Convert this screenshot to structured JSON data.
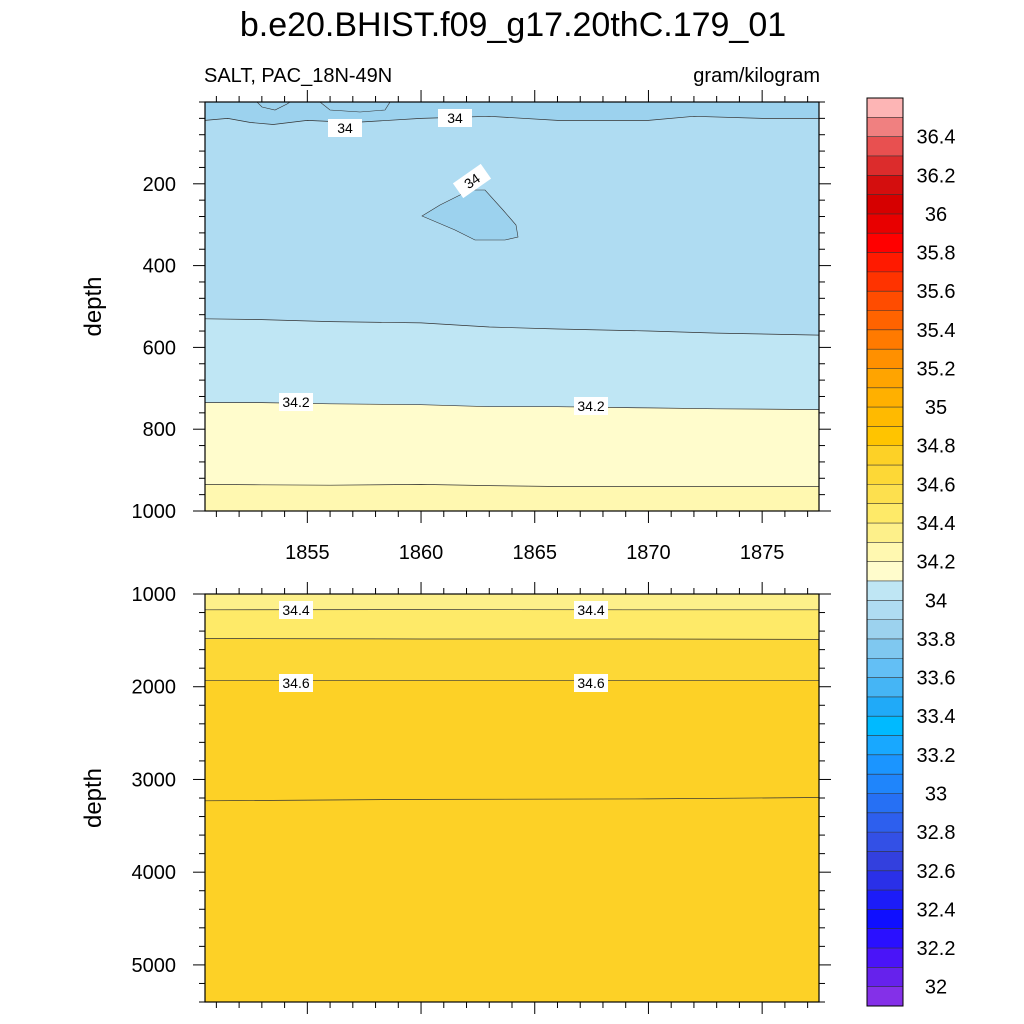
{
  "figure": {
    "title": "b.e20.BHIST.f09_g17.20thC.179_01",
    "left_subtitle": "SALT, PAC_18N-49N",
    "right_subtitle": "gram/kilogram"
  },
  "colorbar": {
    "labels": [
      "36.4",
      "36.2",
      "36",
      "35.8",
      "35.6",
      "35.4",
      "35.2",
      "35",
      "34.8",
      "34.6",
      "34.4",
      "34.2",
      "34",
      "33.8",
      "33.6",
      "33.4",
      "33.2",
      "33",
      "32.8",
      "32.6",
      "32.4",
      "32.2",
      "32"
    ],
    "colors_top_to_bottom": [
      "#fdb5b5",
      "#f08080",
      "#e85050",
      "#dc2c2c",
      "#d40e0e",
      "#d60000",
      "#e80000",
      "#ff0000",
      "#ff1a00",
      "#ff3300",
      "#ff4c00",
      "#ff6300",
      "#ff7a00",
      "#ff9000",
      "#ffa400",
      "#ffb000",
      "#ffba00",
      "#ffc400",
      "#fdd126",
      "#fdd836",
      "#fde04e",
      "#feea68",
      "#fdf08a",
      "#fff8b0",
      "#fffccc",
      "#bfe6f4",
      "#afdcf2",
      "#9cd2ee",
      "#7fc8f0",
      "#63bff5",
      "#45b5f5",
      "#20aaf8",
      "#00baff",
      "#18a8ff",
      "#1b95ff",
      "#1f85fb",
      "#2670f4",
      "#2d5fee",
      "#3350e6",
      "#3340de",
      "#2a30e8",
      "#1c1cf8",
      "#0f0fff",
      "#2a10ff",
      "#4a14f8",
      "#6622ec",
      "#8430e8"
    ]
  },
  "chart_data": [
    {
      "type": "contour",
      "panel": "top",
      "variable": "SALT",
      "region": "PAC_18N-49N",
      "units": "gram/kilogram",
      "ylabel": "depth",
      "xlim": [
        1850.5,
        1877.5
      ],
      "ylim": [
        1000,
        0
      ],
      "x_ticks": [
        "1855",
        "1860",
        "1865",
        "1870",
        "1875"
      ],
      "y_ticks": [
        "200",
        "400",
        "600",
        "800",
        "1000"
      ],
      "contour_labels": [
        "34",
        "34",
        "34",
        "34.2",
        "34.2"
      ],
      "contour_levels": [
        {
          "level": 34.0,
          "x": [
            1850.5,
            1851.5,
            1852.5,
            1853.5,
            1855,
            1857,
            1860,
            1863,
            1866,
            1868,
            1870,
            1872,
            1875,
            1877.5
          ],
          "depth": [
            45,
            40,
            50,
            55,
            45,
            50,
            40,
            35,
            45,
            45,
            45,
            35,
            40,
            40
          ]
        },
        {
          "level": 34.1,
          "x": [
            1850.5,
            1853,
            1856,
            1860,
            1863,
            1866,
            1870,
            1873,
            1877.5
          ],
          "depth": [
            530,
            532,
            537,
            540,
            550,
            555,
            560,
            565,
            570
          ]
        },
        {
          "level": 34.2,
          "x": [
            1850.5,
            1853,
            1856,
            1860,
            1863,
            1866,
            1870,
            1873,
            1877.5
          ],
          "depth": [
            735,
            735,
            738,
            740,
            745,
            745,
            748,
            750,
            752
          ]
        },
        {
          "level": 34.3,
          "x": [
            1850.5,
            1853,
            1856,
            1860,
            1863,
            1866,
            1870,
            1873,
            1877.5
          ],
          "depth": [
            935,
            936,
            937,
            935,
            938,
            940,
            940,
            940,
            940
          ]
        }
      ],
      "fills": [
        {
          "range": [
            33.9,
            34.0
          ],
          "color": "#9cd2ee"
        },
        {
          "range": [
            34.0,
            34.1
          ],
          "color": "#afdcf2"
        },
        {
          "range": [
            34.1,
            34.2
          ],
          "color": "#bfe6f4"
        },
        {
          "range": [
            34.2,
            34.3
          ],
          "color": "#fffccc"
        },
        {
          "range": [
            34.3,
            34.4
          ],
          "color": "#fff8b0"
        }
      ]
    },
    {
      "type": "contour",
      "panel": "bottom",
      "variable": "SALT",
      "region": "PAC_18N-49N",
      "units": "gram/kilogram",
      "ylabel": "depth",
      "xlim": [
        1850.5,
        1877.5
      ],
      "ylim": [
        5400,
        1000
      ],
      "x_ticks": [],
      "y_ticks": [
        "1000",
        "2000",
        "3000",
        "4000",
        "5000"
      ],
      "contour_labels": [
        "34.4",
        "34.4",
        "34.6",
        "34.6"
      ],
      "contour_levels": [
        {
          "level": 34.4,
          "x": [
            1850.5,
            1860,
            1870,
            1877.5
          ],
          "depth": [
            1170,
            1168,
            1170,
            1170
          ]
        },
        {
          "level": 34.5,
          "x": [
            1850.5,
            1860,
            1870,
            1877.5
          ],
          "depth": [
            1480,
            1485,
            1485,
            1490
          ]
        },
        {
          "level": 34.6,
          "x": [
            1850.5,
            1860,
            1870,
            1877.5
          ],
          "depth": [
            1935,
            1935,
            1935,
            1935
          ]
        },
        {
          "level": 34.7,
          "x": [
            1850.5,
            1860,
            1870,
            1877.5
          ],
          "depth": [
            3230,
            3215,
            3210,
            3195
          ]
        }
      ],
      "fills": [
        {
          "range": [
            34.4,
            34.5
          ],
          "color": "#fdf08a"
        },
        {
          "range": [
            34.5,
            34.6
          ],
          "color": "#feea68"
        },
        {
          "range": [
            34.6,
            34.7
          ],
          "color": "#fdd836"
        },
        {
          "range": [
            34.7,
            34.8
          ],
          "color": "#fdd126"
        }
      ]
    }
  ]
}
